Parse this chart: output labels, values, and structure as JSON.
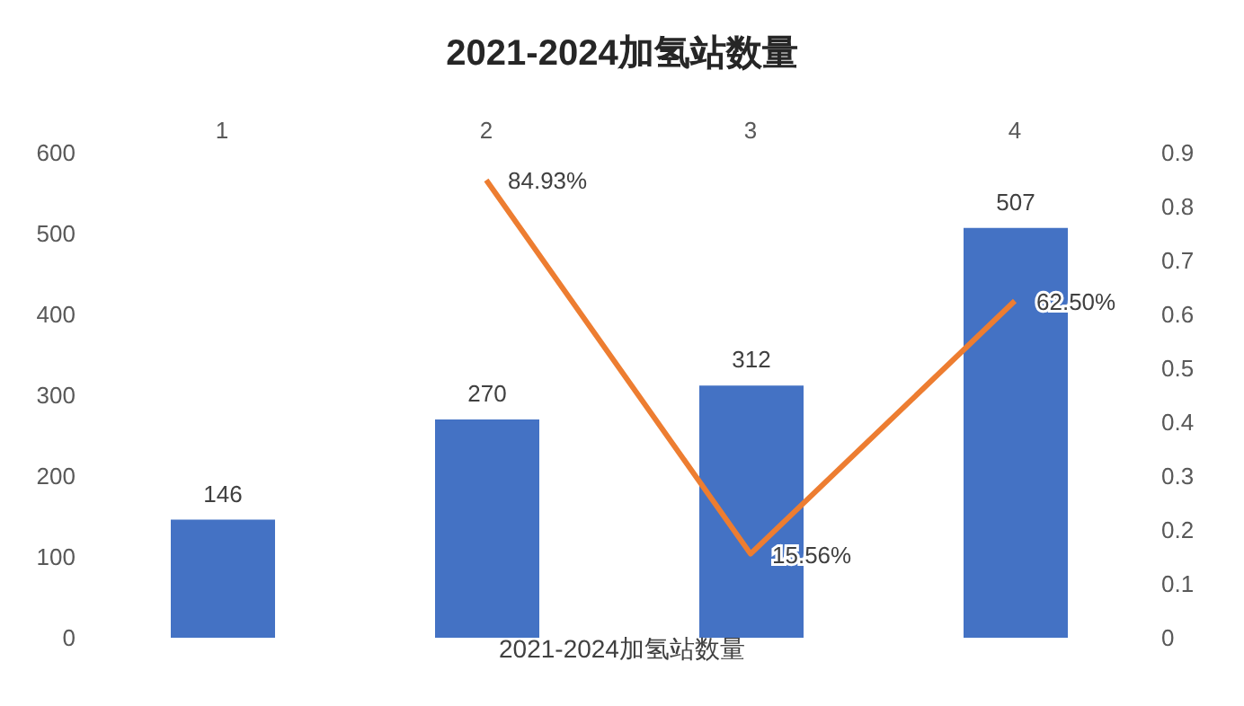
{
  "chart_data": {
    "type": "bar",
    "title": "2021-2024加氢站数量",
    "xlabel": "2021-2024加氢站数量",
    "categories": [
      "1",
      "2",
      "3",
      "4"
    ],
    "series": [
      {
        "color": "#4472c4",
        "values": [
          146,
          270,
          312,
          507
        ]
      },
      {
        "type": "line",
        "axis": "y2",
        "color": "#ed7d31",
        "values": [
          null,
          0.8493,
          0.1556,
          0.625
        ],
        "value_labels": [
          null,
          "84.93%",
          "15.56%",
          "62.50%"
        ],
        "marker": "none"
      }
    ],
    "ylim": [
      0,
      600
    ],
    "yticks": [
      0,
      100,
      200,
      300,
      400,
      500,
      600
    ],
    "y2lim": [
      0,
      0.9
    ],
    "y2ticks": [
      0,
      0.1,
      0.2,
      0.3,
      0.4,
      0.5,
      0.6,
      0.7,
      0.8,
      0.9
    ],
    "data_labels": true,
    "grid": false
  }
}
